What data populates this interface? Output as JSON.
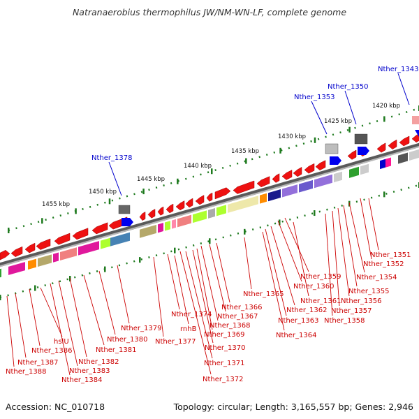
{
  "title": "Natranaerobius thermophilus JW/NM-WN-LF, complete genome",
  "accession": "Accession: NC_010718",
  "summary": "Topology: circular; Length: 3,165,557 bp; Genes: 2,946",
  "colors": {
    "gene_label": "#cc0000",
    "top_label": "#0000cc",
    "dots": "#1e7a1e",
    "track": "#8a8a8a"
  },
  "kbp_ticks": [
    {
      "label": "1420 kbp",
      "kb": 1420
    },
    {
      "label": "1425 kbp",
      "kb": 1425
    },
    {
      "label": "1430 kbp",
      "kb": 1430
    },
    {
      "label": "1435 kbp",
      "kb": 1435
    },
    {
      "label": "1440 kbp",
      "kb": 1440
    },
    {
      "label": "1445 kbp",
      "kb": 1445
    },
    {
      "label": "1450 kbp",
      "kb": 1450
    },
    {
      "label": "1455 kbp",
      "kb": 1455
    }
  ],
  "top_labels": [
    "Nther_1343",
    "Nther_1350",
    "Nther_1353",
    "Nther_1378"
  ],
  "gene_labels": [
    "Nther_1351",
    "Nther_1352",
    "Nther_1354",
    "Nther_1355",
    "Nther_1356",
    "Nther_1357",
    "Nther_1358",
    "Nther_1359",
    "Nther_1360",
    "Nther_1361",
    "Nther_1362",
    "Nther_1363",
    "Nther_1364",
    "Nther_1365",
    "Nther_1366",
    "Nther_1367",
    "Nther_1368",
    "Nther_1369",
    "Nther_1370",
    "Nther_1371",
    "Nther_1372",
    "Nther_1374",
    "rnhB",
    "Nther_1377",
    "Nther_1379",
    "Nther_1380",
    "Nther_1381",
    "Nther_1382",
    "Nther_1383",
    "Nther_1384",
    "hslU",
    "Nther_1386",
    "Nther_1387",
    "Nther_1388"
  ]
}
